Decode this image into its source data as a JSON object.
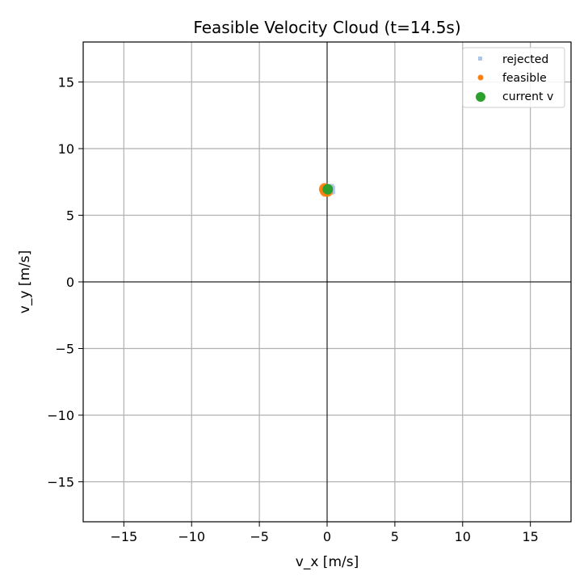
{
  "chart_data": {
    "type": "scatter",
    "title": "Feasible Velocity Cloud (t=14.5s)",
    "xlabel": "v_x [m/s]",
    "ylabel": "v_y [m/s]",
    "xlim": [
      -18,
      18
    ],
    "ylim": [
      -18,
      18
    ],
    "xticks": [
      -15,
      -10,
      -5,
      0,
      5,
      10,
      15
    ],
    "yticks": [
      -15,
      -10,
      -5,
      0,
      5,
      10,
      15
    ],
    "xtick_labels": [
      "−15",
      "−10",
      "−5",
      "0",
      "5",
      "10",
      "15"
    ],
    "ytick_labels": [
      "−15",
      "−10",
      "−5",
      "0",
      "5",
      "10",
      "15"
    ],
    "grid": true,
    "legend_position": "top-right",
    "series": [
      {
        "name": "rejected",
        "marker": "square",
        "color": "#aec7e8",
        "points": [
          [
            0.05,
            6.95
          ],
          [
            0.15,
            7.0
          ],
          [
            0.2,
            6.85
          ],
          [
            0.25,
            6.95
          ],
          [
            0.1,
            7.05
          ],
          [
            0.3,
            6.9
          ],
          [
            0.0,
            6.9
          ],
          [
            0.2,
            7.05
          ]
        ]
      },
      {
        "name": "feasible",
        "marker": "circle",
        "color": "#ff7f0e",
        "points": [
          [
            -0.2,
            6.85
          ],
          [
            -0.1,
            7.0
          ],
          [
            -0.15,
            6.75
          ],
          [
            0.0,
            6.8
          ],
          [
            -0.25,
            6.95
          ],
          [
            -0.05,
            6.9
          ],
          [
            -0.2,
            7.05
          ],
          [
            0.05,
            6.75
          ]
        ]
      },
      {
        "name": "current v",
        "marker": "circle",
        "color": "#2ca02c",
        "points": [
          [
            0.05,
            6.95
          ]
        ]
      }
    ]
  }
}
